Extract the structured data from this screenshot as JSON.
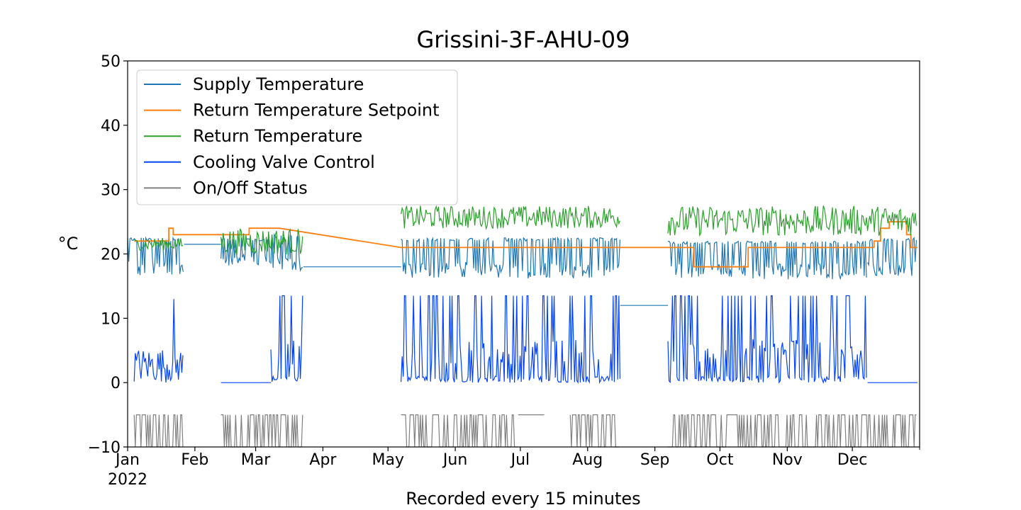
{
  "chart_data": {
    "type": "line",
    "title": "Grissini-3F-AHU-09",
    "xlabel": "Recorded every 15 minutes",
    "ylabel": "°C",
    "ylim": [
      -10,
      50
    ],
    "yticks": [
      -10,
      0,
      10,
      20,
      30,
      40,
      50
    ],
    "x_start": "2022-01-01",
    "x_end": "2022-12-31",
    "x_year_label": "2022",
    "x_tick_labels": [
      "Jan",
      "Feb",
      "Mar",
      "Apr",
      "May",
      "Jun",
      "Jul",
      "Aug",
      "Sep",
      "Oct",
      "Nov",
      "Dec"
    ],
    "legend_placement": "top-left",
    "grid": false,
    "series": [
      {
        "name": "Supply Temperature",
        "color": "#1f77b4",
        "segments": [
          {
            "from": "2022-01-01",
            "to": "2022-01-27",
            "low": 14,
            "high": 22.5,
            "base": 21.5
          },
          {
            "from": "2022-01-27",
            "to": "2022-02-13",
            "flat": 21.5
          },
          {
            "from": "2022-02-13",
            "to": "2022-03-08",
            "low": 16,
            "high": 22.5,
            "base": 21
          },
          {
            "from": "2022-03-08",
            "to": "2022-03-23",
            "low": 14,
            "high": 23,
            "base": 20
          },
          {
            "from": "2022-03-23",
            "to": "2022-05-07",
            "flat": 18
          },
          {
            "from": "2022-05-07",
            "to": "2022-08-16",
            "low": 13.5,
            "high": 22.5,
            "base": 21
          },
          {
            "from": "2022-08-16",
            "to": "2022-09-07",
            "flat": 12
          },
          {
            "from": "2022-09-07",
            "to": "2022-12-08",
            "low": 13.5,
            "high": 22,
            "base": 20.5
          },
          {
            "from": "2022-12-08",
            "to": "2022-12-31",
            "low": 14,
            "high": 22.5,
            "base": 21.5
          }
        ]
      },
      {
        "name": "Return Temperature Setpoint",
        "color": "#ff7f0e",
        "steps": [
          {
            "from": "2022-01-04",
            "to": "2022-01-20",
            "value": 22
          },
          {
            "from": "2022-01-20",
            "to": "2022-01-22",
            "value": 24
          },
          {
            "from": "2022-01-22",
            "to": "2022-01-27",
            "value": 23
          },
          {
            "from": "2022-02-13",
            "to": "2022-02-26",
            "value": 23
          },
          {
            "from": "2022-02-26",
            "to": "2022-03-06",
            "value": 24
          },
          {
            "from": "2022-03-06",
            "to": "2022-03-12",
            "value": 24
          },
          {
            "from": "2022-05-07",
            "to": "2022-08-16",
            "value": 21
          },
          {
            "from": "2022-09-07",
            "to": "2022-09-19",
            "value": 21
          },
          {
            "from": "2022-09-19",
            "to": "2022-10-14",
            "value": 18
          },
          {
            "from": "2022-10-14",
            "to": "2022-12-11",
            "value": 21
          },
          {
            "from": "2022-12-11",
            "to": "2022-12-14",
            "value": 22
          },
          {
            "from": "2022-12-14",
            "to": "2022-12-18",
            "value": 24
          },
          {
            "from": "2022-12-18",
            "to": "2022-12-26",
            "value": 25
          },
          {
            "from": "2022-12-26",
            "to": "2022-12-28",
            "value": 23
          },
          {
            "from": "2022-12-28",
            "to": "2022-12-31",
            "value": 21
          }
        ]
      },
      {
        "name": "Return Temperature",
        "color": "#2ca02c",
        "segments": [
          {
            "from": "2022-01-04",
            "to": "2022-01-27",
            "low": 19,
            "high": 22.5
          },
          {
            "from": "2022-02-13",
            "to": "2022-03-23",
            "low": 16.5,
            "high": 24
          },
          {
            "from": "2022-05-07",
            "to": "2022-08-16",
            "low": 21,
            "high": 27.5
          },
          {
            "from": "2022-09-07",
            "to": "2022-12-31",
            "low": 19,
            "high": 27.5
          }
        ]
      },
      {
        "name": "Cooling Valve Control",
        "color": "#0343ff",
        "segments": [
          {
            "from": "2022-01-04",
            "to": "2022-01-27",
            "low": 0,
            "high": 6,
            "spikes": 13
          },
          {
            "from": "2022-02-13",
            "to": "2022-03-08",
            "flat": 0
          },
          {
            "from": "2022-03-08",
            "to": "2022-03-23",
            "low": 0,
            "high": 13.5
          },
          {
            "from": "2022-05-07",
            "to": "2022-08-16",
            "low": 0,
            "high": 13.5
          },
          {
            "from": "2022-09-07",
            "to": "2022-12-08",
            "low": 0,
            "high": 13.5
          },
          {
            "from": "2022-12-08",
            "to": "2022-12-31",
            "flat": 0
          }
        ]
      },
      {
        "name": "On/Off Status",
        "color": "#808080",
        "segments": [
          {
            "from": "2022-01-04",
            "to": "2022-01-27",
            "low": -10,
            "high": -5
          },
          {
            "from": "2022-02-13",
            "to": "2022-03-23",
            "low": -10,
            "high": -5
          },
          {
            "from": "2022-05-07",
            "to": "2022-06-30",
            "low": -10,
            "high": -5
          },
          {
            "from": "2022-06-30",
            "to": "2022-07-12",
            "flat": -5
          },
          {
            "from": "2022-07-24",
            "to": "2022-08-16",
            "low": -10,
            "high": -5
          },
          {
            "from": "2022-09-07",
            "to": "2022-12-31",
            "low": -10,
            "high": -5
          }
        ]
      }
    ]
  }
}
